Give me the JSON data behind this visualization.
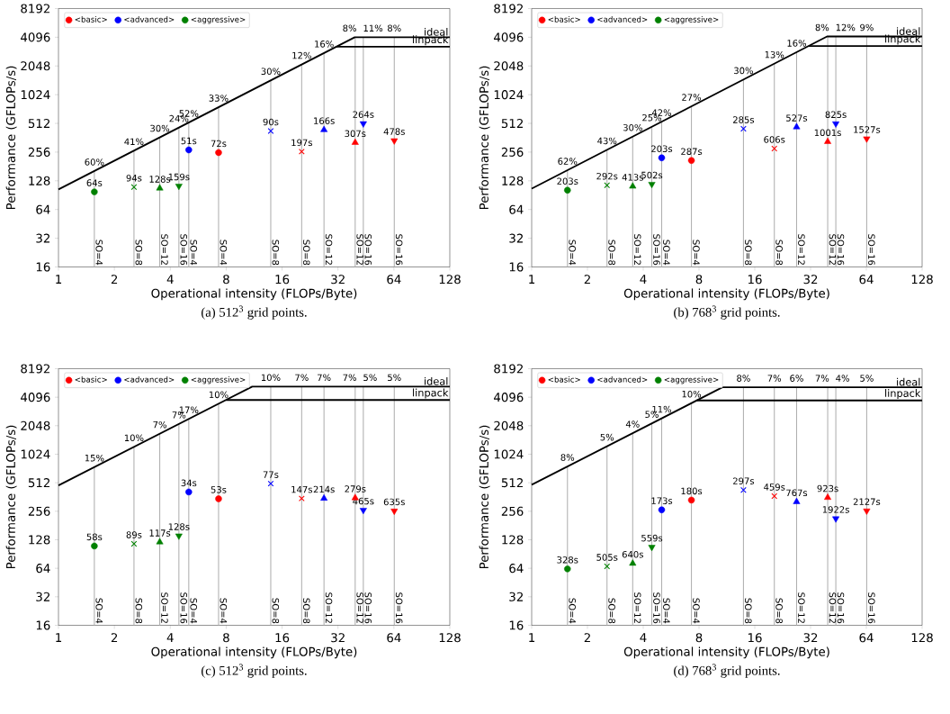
{
  "chart_data": [
    {
      "type": "scatter",
      "xlabel": "Operational intensity (FLOPs/Byte)",
      "ylabel": "Performance (GFLOPs/s)",
      "log": "xy",
      "legend": "top left",
      "xlim": [
        1,
        128
      ],
      "ylim": [
        16,
        8192
      ],
      "xticks": [
        1,
        2,
        4,
        8,
        16,
        32,
        64,
        128
      ],
      "yticks": [
        16,
        32,
        64,
        128,
        256,
        512,
        1024,
        2048,
        4096,
        8192
      ],
      "series": [
        {
          "name": "<basic>",
          "color": "#ff0000",
          "marker": "circle",
          "x": [
            7.28
          ],
          "values": [
            253
          ]
        },
        {
          "color": "#ff0000",
          "marker": "cross",
          "x": [
            20.4
          ],
          "values": [
            259
          ]
        },
        {
          "color": "#ff0000",
          "marker": "triangle",
          "x": [
            39.6
          ],
          "values": [
            322
          ]
        },
        {
          "color": "#ff0000",
          "marker": "triangle-down",
          "x": [
            64.3
          ],
          "values": [
            338
          ]
        },
        {
          "name": "<advanced>",
          "color": "#0000ff",
          "marker": "circle",
          "x": [
            5.03
          ],
          "values": [
            270
          ]
        },
        {
          "color": "#0000ff",
          "marker": "cross",
          "x": [
            13.9
          ],
          "values": [
            426
          ]
        },
        {
          "color": "#0000ff",
          "marker": "triangle",
          "x": [
            26.9
          ],
          "values": [
            438
          ]
        },
        {
          "color": "#0000ff",
          "marker": "triangle-down",
          "x": [
            43.8
          ],
          "values": [
            510
          ]
        },
        {
          "name": "<aggressive>",
          "color": "#008000",
          "marker": "circle",
          "x": [
            1.56
          ],
          "values": [
            98
          ]
        },
        {
          "color": "#008000",
          "marker": "cross",
          "x": [
            2.55
          ],
          "values": [
            110
          ]
        },
        {
          "color": "#008000",
          "marker": "triangle",
          "x": [
            3.51
          ],
          "values": [
            107
          ]
        },
        {
          "color": "#008000",
          "marker": "triangle-down",
          "x": [
            4.45
          ],
          "values": [
            113
          ]
        },
        {
          "name": "ideal",
          "type": "line",
          "color": "#000000",
          "x": [
            1,
            39.4,
            128
          ],
          "values": [
            104,
            4100,
            4100
          ]
        },
        {
          "name": "linpack",
          "type": "line",
          "color": "#000000",
          "x": [
            31.3,
            128
          ],
          "values": [
            3260,
            3260
          ]
        }
      ],
      "annotations": [
        {
          "text": "72s",
          "x": 7.28,
          "y": 253
        },
        {
          "text": "197s",
          "x": 20.4,
          "y": 259
        },
        {
          "text": "307s",
          "x": 39.6,
          "y": 322
        },
        {
          "text": "478s",
          "x": 64.3,
          "y": 338
        },
        {
          "text": "51s",
          "x": 5.03,
          "y": 270
        },
        {
          "text": "90s",
          "x": 13.9,
          "y": 426
        },
        {
          "text": "166s",
          "x": 26.9,
          "y": 438
        },
        {
          "text": "264s",
          "x": 43.8,
          "y": 510
        },
        {
          "text": "64s",
          "x": 1.56,
          "y": 98
        },
        {
          "text": "94s",
          "x": 2.55,
          "y": 110
        },
        {
          "text": "128s",
          "x": 3.51,
          "y": 107
        },
        {
          "text": "159s",
          "x": 4.45,
          "y": 113
        },
        {
          "text": "60%",
          "x": 1.56,
          "y": 162
        },
        {
          "text": "41%",
          "x": 2.55,
          "y": 265
        },
        {
          "text": "30%",
          "x": 3.51,
          "y": 365
        },
        {
          "text": "24%",
          "x": 4.45,
          "y": 463
        },
        {
          "text": "52%",
          "x": 5.03,
          "y": 523
        },
        {
          "text": "33%",
          "x": 7.28,
          "y": 757
        },
        {
          "text": "30%",
          "x": 13.9,
          "y": 1446
        },
        {
          "text": "12%",
          "x": 20.4,
          "y": 2122
        },
        {
          "text": "16%",
          "x": 26.9,
          "y": 2798
        },
        {
          "text": "8%",
          "x": 39.6,
          "y": 4100
        },
        {
          "text": "11%",
          "x": 43.8,
          "y": 4100
        },
        {
          "text": "8%",
          "x": 64.3,
          "y": 4100
        },
        {
          "text": "SO=4",
          "x": 1.56,
          "y": 16
        },
        {
          "text": "SO=8",
          "x": 2.55,
          "y": 16
        },
        {
          "text": "SO=12",
          "x": 3.51,
          "y": 16
        },
        {
          "text": "SO=16",
          "x": 4.45,
          "y": 16
        },
        {
          "text": "SO=4",
          "x": 5.03,
          "y": 16
        },
        {
          "text": "SO=4",
          "x": 7.28,
          "y": 16
        },
        {
          "text": "SO=8",
          "x": 13.9,
          "y": 16
        },
        {
          "text": "SO=8",
          "x": 20.4,
          "y": 16
        },
        {
          "text": "SO=12",
          "x": 26.9,
          "y": 16
        },
        {
          "text": "SO=12",
          "x": 39.6,
          "y": 16
        },
        {
          "text": "SO=16",
          "x": 43.8,
          "y": 16
        },
        {
          "text": "SO=16",
          "x": 64.3,
          "y": 16
        },
        "(a) 512$^{3}$ grid points."
      ],
      "ref_lines": [
        {
          "axis": "x",
          "value": 1.56,
          "color": "#b0b0b0"
        },
        {
          "axis": "x",
          "value": 2.55,
          "color": "#b0b0b0"
        },
        {
          "axis": "x",
          "value": 3.51,
          "color": "#b0b0b0"
        },
        {
          "axis": "x",
          "value": 4.45,
          "color": "#b0b0b0"
        },
        {
          "axis": "x",
          "value": 5.03,
          "color": "#b0b0b0"
        },
        {
          "axis": "x",
          "value": 7.28,
          "color": "#b0b0b0"
        },
        {
          "axis": "x",
          "value": 13.9,
          "color": "#b0b0b0"
        },
        {
          "axis": "x",
          "value": 20.4,
          "color": "#b0b0b0"
        },
        {
          "axis": "x",
          "value": 26.9,
          "color": "#b0b0b0"
        },
        {
          "axis": "x",
          "value": 39.6,
          "color": "#b0b0b0"
        },
        {
          "axis": "x",
          "value": 43.8,
          "color": "#b0b0b0"
        },
        {
          "axis": "x",
          "value": 64.3,
          "color": "#b0b0b0"
        }
      ]
    },
    {
      "type": "scatter",
      "xlabel": "Operational intensity (FLOPs/Byte)",
      "ylabel": "Performance (GFLOPs/s)",
      "log": "xy",
      "legend": "top left",
      "xlim": [
        1,
        128
      ],
      "ylim": [
        16,
        8192
      ],
      "xticks": [
        1,
        2,
        4,
        8,
        16,
        32,
        64,
        128
      ],
      "yticks": [
        16,
        32,
        64,
        128,
        256,
        512,
        1024,
        2048,
        4096,
        8192
      ],
      "series": [
        {
          "name": "<basic>",
          "color": "#ff0000",
          "marker": "circle",
          "x": [
            7.28
          ],
          "values": [
            209
          ]
        },
        {
          "color": "#ff0000",
          "marker": "cross",
          "x": [
            20.4
          ],
          "values": [
            279
          ]
        },
        {
          "color": "#ff0000",
          "marker": "triangle",
          "x": [
            39.6
          ],
          "values": [
            329
          ]
        },
        {
          "color": "#ff0000",
          "marker": "triangle-down",
          "x": [
            64.3
          ],
          "values": [
            354
          ]
        },
        {
          "name": "<advanced>",
          "color": "#0000ff",
          "marker": "circle",
          "x": [
            5.03
          ],
          "values": [
            223
          ]
        },
        {
          "color": "#0000ff",
          "marker": "cross",
          "x": [
            13.9
          ],
          "values": [
            449
          ]
        },
        {
          "color": "#0000ff",
          "marker": "triangle",
          "x": [
            26.9
          ],
          "values": [
            469
          ]
        },
        {
          "color": "#0000ff",
          "marker": "triangle-down",
          "x": [
            43.8
          ],
          "values": [
            509
          ]
        },
        {
          "name": "<aggressive>",
          "color": "#008000",
          "marker": "circle",
          "x": [
            1.56
          ],
          "values": [
            102
          ]
        },
        {
          "color": "#008000",
          "marker": "cross",
          "x": [
            2.55
          ],
          "values": [
            115
          ]
        },
        {
          "color": "#008000",
          "marker": "triangle",
          "x": [
            3.51
          ],
          "values": [
            112
          ]
        },
        {
          "color": "#008000",
          "marker": "triangle-down",
          "x": [
            4.45
          ],
          "values": [
            118
          ]
        },
        {
          "name": "ideal",
          "type": "line",
          "color": "#000000",
          "x": [
            1,
            39.3,
            128
          ],
          "values": [
            106,
            4170,
            4170
          ]
        },
        {
          "name": "linpack",
          "type": "line",
          "color": "#000000",
          "x": [
            31.2,
            128
          ],
          "values": [
            3310,
            3310
          ]
        }
      ],
      "annotations": [
        {
          "text": "287s",
          "x": 7.28,
          "y": 209
        },
        {
          "text": "606s",
          "x": 20.4,
          "y": 279
        },
        {
          "text": "1001s",
          "x": 39.6,
          "y": 329
        },
        {
          "text": "1527s",
          "x": 64.3,
          "y": 354
        },
        {
          "text": "203s",
          "x": 5.03,
          "y": 223
        },
        {
          "text": "285s",
          "x": 13.9,
          "y": 449
        },
        {
          "text": "527s",
          "x": 26.9,
          "y": 469
        },
        {
          "text": "825s",
          "x": 43.8,
          "y": 509
        },
        {
          "text": "203s",
          "x": 1.56,
          "y": 102
        },
        {
          "text": "292s",
          "x": 2.55,
          "y": 115
        },
        {
          "text": "413s",
          "x": 3.51,
          "y": 112
        },
        {
          "text": "502s",
          "x": 4.45,
          "y": 118
        },
        {
          "text": "62%",
          "x": 1.56,
          "y": 165
        },
        {
          "text": "43%",
          "x": 2.55,
          "y": 270
        },
        {
          "text": "30%",
          "x": 3.51,
          "y": 372
        },
        {
          "text": "25%",
          "x": 4.45,
          "y": 472
        },
        {
          "text": "42%",
          "x": 5.03,
          "y": 533
        },
        {
          "text": "27%",
          "x": 7.28,
          "y": 772
        },
        {
          "text": "30%",
          "x": 13.9,
          "y": 1473
        },
        {
          "text": "13%",
          "x": 20.4,
          "y": 2162
        },
        {
          "text": "16%",
          "x": 26.9,
          "y": 2851
        },
        {
          "text": "8%",
          "x": 39.6,
          "y": 4170
        },
        {
          "text": "12%",
          "x": 43.8,
          "y": 4170
        },
        {
          "text": "9%",
          "x": 64.3,
          "y": 4170
        },
        {
          "text": "SO=4",
          "x": 1.56,
          "y": 16
        },
        {
          "text": "SO=8",
          "x": 2.55,
          "y": 16
        },
        {
          "text": "SO=12",
          "x": 3.51,
          "y": 16
        },
        {
          "text": "SO=16",
          "x": 4.45,
          "y": 16
        },
        {
          "text": "SO=4",
          "x": 5.03,
          "y": 16
        },
        {
          "text": "SO=4",
          "x": 7.28,
          "y": 16
        },
        {
          "text": "SO=8",
          "x": 13.9,
          "y": 16
        },
        {
          "text": "SO=8",
          "x": 20.4,
          "y": 16
        },
        {
          "text": "SO=12",
          "x": 26.9,
          "y": 16
        },
        {
          "text": "SO=12",
          "x": 39.6,
          "y": 16
        },
        {
          "text": "SO=16",
          "x": 43.8,
          "y": 16
        },
        {
          "text": "SO=16",
          "x": 64.3,
          "y": 16
        },
        "(b) 768$^{3}$ grid points."
      ],
      "ref_lines": [
        {
          "axis": "x",
          "value": 1.56,
          "color": "#b0b0b0"
        },
        {
          "axis": "x",
          "value": 2.55,
          "color": "#b0b0b0"
        },
        {
          "axis": "x",
          "value": 3.51,
          "color": "#b0b0b0"
        },
        {
          "axis": "x",
          "value": 4.45,
          "color": "#b0b0b0"
        },
        {
          "axis": "x",
          "value": 5.03,
          "color": "#b0b0b0"
        },
        {
          "axis": "x",
          "value": 7.28,
          "color": "#b0b0b0"
        },
        {
          "axis": "x",
          "value": 13.9,
          "color": "#b0b0b0"
        },
        {
          "axis": "x",
          "value": 20.4,
          "color": "#b0b0b0"
        },
        {
          "axis": "x",
          "value": 26.9,
          "color": "#b0b0b0"
        },
        {
          "axis": "x",
          "value": 39.6,
          "color": "#b0b0b0"
        },
        {
          "axis": "x",
          "value": 43.8,
          "color": "#b0b0b0"
        },
        {
          "axis": "x",
          "value": 64.3,
          "color": "#b0b0b0"
        }
      ]
    },
    {
      "type": "scatter",
      "xlabel": "Operational intensity (FLOPs/Byte)",
      "ylabel": "Performance (GFLOPs/s)",
      "log": "xy",
      "legend": "top left",
      "xlim": [
        1,
        128
      ],
      "ylim": [
        16,
        8192
      ],
      "xticks": [
        1,
        2,
        4,
        8,
        16,
        32,
        64,
        128
      ],
      "yticks": [
        16,
        32,
        64,
        128,
        256,
        512,
        1024,
        2048,
        4096,
        8192
      ],
      "series": [
        {
          "name": "<basic>",
          "color": "#ff0000",
          "marker": "circle",
          "x": [
            7.28
          ],
          "values": [
            347
          ]
        },
        {
          "color": "#ff0000",
          "marker": "cross",
          "x": [
            20.4
          ],
          "values": [
            349
          ]
        },
        {
          "color": "#ff0000",
          "marker": "triangle",
          "x": [
            39.6
          ],
          "values": [
            354
          ]
        },
        {
          "color": "#ff0000",
          "marker": "triangle-down",
          "x": [
            64.3
          ],
          "values": [
            258
          ]
        },
        {
          "name": "<advanced>",
          "color": "#0000ff",
          "marker": "circle",
          "x": [
            5.03
          ],
          "values": [
            409
          ]
        },
        {
          "color": "#0000ff",
          "marker": "cross",
          "x": [
            13.9
          ],
          "values": [
            501
          ]
        },
        {
          "color": "#0000ff",
          "marker": "triangle",
          "x": [
            26.9
          ],
          "values": [
            350
          ]
        },
        {
          "color": "#0000ff",
          "marker": "triangle-down",
          "x": [
            43.8
          ],
          "values": [
            263
          ]
        },
        {
          "name": "<aggressive>",
          "color": "#008000",
          "marker": "circle",
          "x": [
            1.56
          ],
          "values": [
            110
          ]
        },
        {
          "color": "#008000",
          "marker": "cross",
          "x": [
            2.55
          ],
          "values": [
            116
          ]
        },
        {
          "color": "#008000",
          "marker": "triangle",
          "x": [
            3.51
          ],
          "values": [
            121
          ]
        },
        {
          "color": "#008000",
          "marker": "triangle-down",
          "x": [
            4.45
          ],
          "values": [
            141
          ]
        },
        {
          "name": "ideal",
          "type": "line",
          "color": "#000000",
          "x": [
            1,
            11.05,
            128
          ],
          "values": [
            480,
            5306,
            5306
          ]
        },
        {
          "name": "linpack",
          "type": "line",
          "color": "#000000",
          "x": [
            7.98,
            128
          ],
          "values": [
            3832,
            3832
          ]
        }
      ],
      "annotations": [
        {
          "text": "53s",
          "x": 7.28,
          "y": 347
        },
        {
          "text": "147s",
          "x": 20.4,
          "y": 349
        },
        {
          "text": "279s",
          "x": 39.6,
          "y": 354
        },
        {
          "text": "635s",
          "x": 64.3,
          "y": 258
        },
        {
          "text": "34s",
          "x": 5.03,
          "y": 409
        },
        {
          "text": "77s",
          "x": 13.9,
          "y": 501
        },
        {
          "text": "214s",
          "x": 26.9,
          "y": 350
        },
        {
          "text": "465s",
          "x": 43.8,
          "y": 263
        },
        {
          "text": "58s",
          "x": 1.56,
          "y": 110
        },
        {
          "text": "89s",
          "x": 2.55,
          "y": 116
        },
        {
          "text": "117s",
          "x": 3.51,
          "y": 121
        },
        {
          "text": "128s",
          "x": 4.45,
          "y": 141
        },
        {
          "text": "15%",
          "x": 1.56,
          "y": 749
        },
        {
          "text": "10%",
          "x": 2.55,
          "y": 1224
        },
        {
          "text": "7%",
          "x": 3.51,
          "y": 1685
        },
        {
          "text": "7%",
          "x": 4.45,
          "y": 2136
        },
        {
          "text": "17%",
          "x": 5.03,
          "y": 2414
        },
        {
          "text": "10%",
          "x": 7.28,
          "y": 3494
        },
        {
          "text": "10%",
          "x": 13.9,
          "y": 5306
        },
        {
          "text": "7%",
          "x": 20.4,
          "y": 5306
        },
        {
          "text": "7%",
          "x": 26.9,
          "y": 5306
        },
        {
          "text": "7%",
          "x": 39.6,
          "y": 5306
        },
        {
          "text": "5%",
          "x": 43.8,
          "y": 5306
        },
        {
          "text": "5%",
          "x": 64.3,
          "y": 5306
        },
        {
          "text": "SO=4",
          "x": 1.56,
          "y": 16
        },
        {
          "text": "SO=8",
          "x": 2.55,
          "y": 16
        },
        {
          "text": "SO=12",
          "x": 3.51,
          "y": 16
        },
        {
          "text": "SO=16",
          "x": 4.45,
          "y": 16
        },
        {
          "text": "SO=4",
          "x": 5.03,
          "y": 16
        },
        {
          "text": "SO=4",
          "x": 7.28,
          "y": 16
        },
        {
          "text": "SO=8",
          "x": 13.9,
          "y": 16
        },
        {
          "text": "SO=8",
          "x": 20.4,
          "y": 16
        },
        {
          "text": "SO=12",
          "x": 26.9,
          "y": 16
        },
        {
          "text": "SO=12",
          "x": 39.6,
          "y": 16
        },
        {
          "text": "SO=16",
          "x": 43.8,
          "y": 16
        },
        {
          "text": "SO=16",
          "x": 64.3,
          "y": 16
        },
        "(c) 512$^{3}$ grid points."
      ],
      "ref_lines": [
        {
          "axis": "x",
          "value": 1.56,
          "color": "#b0b0b0"
        },
        {
          "axis": "x",
          "value": 2.55,
          "color": "#b0b0b0"
        },
        {
          "axis": "x",
          "value": 3.51,
          "color": "#b0b0b0"
        },
        {
          "axis": "x",
          "value": 4.45,
          "color": "#b0b0b0"
        },
        {
          "axis": "x",
          "value": 5.03,
          "color": "#b0b0b0"
        },
        {
          "axis": "x",
          "value": 7.28,
          "color": "#b0b0b0"
        },
        {
          "axis": "x",
          "value": 13.9,
          "color": "#b0b0b0"
        },
        {
          "axis": "x",
          "value": 20.4,
          "color": "#b0b0b0"
        },
        {
          "axis": "x",
          "value": 26.9,
          "color": "#b0b0b0"
        },
        {
          "axis": "x",
          "value": 39.6,
          "color": "#b0b0b0"
        },
        {
          "axis": "x",
          "value": 43.8,
          "color": "#b0b0b0"
        },
        {
          "axis": "x",
          "value": 64.3,
          "color": "#b0b0b0"
        }
      ]
    },
    {
      "type": "scatter",
      "xlabel": "Operational intensity (FLOPs/Byte)",
      "ylabel": "Performance (GFLOPs/s)",
      "log": "xy",
      "legend": "top left",
      "xlim": [
        1,
        128
      ],
      "ylim": [
        16,
        8192
      ],
      "xticks": [
        1,
        2,
        4,
        8,
        16,
        32,
        64,
        128
      ],
      "yticks": [
        16,
        32,
        64,
        128,
        256,
        512,
        1024,
        2048,
        4096,
        8192
      ],
      "series": [
        {
          "name": "<basic>",
          "color": "#ff0000",
          "marker": "circle",
          "x": [
            7.28
          ],
          "values": [
            336
          ]
        },
        {
          "color": "#ff0000",
          "marker": "cross",
          "x": [
            20.4
          ],
          "values": [
            370
          ]
        },
        {
          "color": "#ff0000",
          "marker": "triangle",
          "x": [
            39.6
          ],
          "values": [
            357
          ]
        },
        {
          "color": "#ff0000",
          "marker": "triangle-down",
          "x": [
            64.3
          ],
          "values": [
            259
          ]
        },
        {
          "name": "<advanced>",
          "color": "#0000ff",
          "marker": "circle",
          "x": [
            5.03
          ],
          "values": [
            265
          ]
        },
        {
          "color": "#0000ff",
          "marker": "cross",
          "x": [
            13.9
          ],
          "values": [
            429
          ]
        },
        {
          "color": "#0000ff",
          "marker": "triangle",
          "x": [
            26.9
          ],
          "values": [
            322
          ]
        },
        {
          "color": "#0000ff",
          "marker": "triangle-down",
          "x": [
            43.8
          ],
          "values": [
            214
          ]
        },
        {
          "name": "<aggressive>",
          "color": "#008000",
          "marker": "circle",
          "x": [
            1.56
          ],
          "values": [
            63
          ]
        },
        {
          "color": "#008000",
          "marker": "cross",
          "x": [
            2.55
          ],
          "values": [
            67
          ]
        },
        {
          "color": "#008000",
          "marker": "triangle",
          "x": [
            3.51
          ],
          "values": [
            72
          ]
        },
        {
          "color": "#008000",
          "marker": "triangle-down",
          "x": [
            4.45
          ],
          "values": [
            107
          ]
        },
        {
          "name": "ideal",
          "type": "line",
          "color": "#000000",
          "x": [
            1,
            10.7,
            128
          ],
          "values": [
            487,
            5210,
            5210
          ]
        },
        {
          "name": "linpack",
          "type": "line",
          "color": "#000000",
          "x": [
            7.78,
            128
          ],
          "values": [
            3790,
            3790
          ]
        }
      ],
      "annotations": [
        {
          "text": "180s",
          "x": 7.28,
          "y": 336
        },
        {
          "text": "459s",
          "x": 20.4,
          "y": 370
        },
        {
          "text": "923s",
          "x": 39.6,
          "y": 357
        },
        {
          "text": "2127s",
          "x": 64.3,
          "y": 259
        },
        {
          "text": "173s",
          "x": 5.03,
          "y": 265
        },
        {
          "text": "297s",
          "x": 13.9,
          "y": 429
        },
        {
          "text": "767s",
          "x": 26.9,
          "y": 322
        },
        {
          "text": "1922s",
          "x": 43.8,
          "y": 214
        },
        {
          "text": "328s",
          "x": 1.56,
          "y": 63
        },
        {
          "text": "505s",
          "x": 2.55,
          "y": 67
        },
        {
          "text": "640s",
          "x": 3.51,
          "y": 72
        },
        {
          "text": "559s",
          "x": 4.45,
          "y": 107
        },
        {
          "text": "8%",
          "x": 1.56,
          "y": 760
        },
        {
          "text": "5%",
          "x": 2.55,
          "y": 1242
        },
        {
          "text": "4%",
          "x": 3.51,
          "y": 1709
        },
        {
          "text": "5%",
          "x": 4.45,
          "y": 2167
        },
        {
          "text": "11%",
          "x": 5.03,
          "y": 2450
        },
        {
          "text": "10%",
          "x": 7.28,
          "y": 3545
        },
        {
          "text": "8%",
          "x": 13.9,
          "y": 5210
        },
        {
          "text": "7%",
          "x": 20.4,
          "y": 5210
        },
        {
          "text": "6%",
          "x": 26.9,
          "y": 5210
        },
        {
          "text": "7%",
          "x": 39.6,
          "y": 5210
        },
        {
          "text": "4%",
          "x": 43.8,
          "y": 5210
        },
        {
          "text": "5%",
          "x": 64.3,
          "y": 5210
        },
        {
          "text": "SO=4",
          "x": 1.56,
          "y": 16
        },
        {
          "text": "SO=8",
          "x": 2.55,
          "y": 16
        },
        {
          "text": "SO=12",
          "x": 3.51,
          "y": 16
        },
        {
          "text": "SO=16",
          "x": 4.45,
          "y": 16
        },
        {
          "text": "SO=4",
          "x": 5.03,
          "y": 16
        },
        {
          "text": "SO=4",
          "x": 7.28,
          "y": 16
        },
        {
          "text": "SO=8",
          "x": 13.9,
          "y": 16
        },
        {
          "text": "SO=8",
          "x": 20.4,
          "y": 16
        },
        {
          "text": "SO=12",
          "x": 26.9,
          "y": 16
        },
        {
          "text": "SO=12",
          "x": 39.6,
          "y": 16
        },
        {
          "text": "SO=16",
          "x": 43.8,
          "y": 16
        },
        {
          "text": "SO=16",
          "x": 64.3,
          "y": 16
        },
        "(d) 768$^{3}$ grid points."
      ],
      "ref_lines": [
        {
          "axis": "x",
          "value": 1.56,
          "color": "#b0b0b0"
        },
        {
          "axis": "x",
          "value": 2.55,
          "color": "#b0b0b0"
        },
        {
          "axis": "x",
          "value": 3.51,
          "color": "#b0b0b0"
        },
        {
          "axis": "x",
          "value": 4.45,
          "color": "#b0b0b0"
        },
        {
          "axis": "x",
          "value": 5.03,
          "color": "#b0b0b0"
        },
        {
          "axis": "x",
          "value": 7.28,
          "color": "#b0b0b0"
        },
        {
          "axis": "x",
          "value": 13.9,
          "color": "#b0b0b0"
        },
        {
          "axis": "x",
          "value": 20.4,
          "color": "#b0b0b0"
        },
        {
          "axis": "x",
          "value": 26.9,
          "color": "#b0b0b0"
        },
        {
          "axis": "x",
          "value": 39.6,
          "color": "#b0b0b0"
        },
        {
          "axis": "x",
          "value": 43.8,
          "color": "#b0b0b0"
        },
        {
          "axis": "x",
          "value": 64.3,
          "color": "#b0b0b0"
        }
      ]
    }
  ]
}
